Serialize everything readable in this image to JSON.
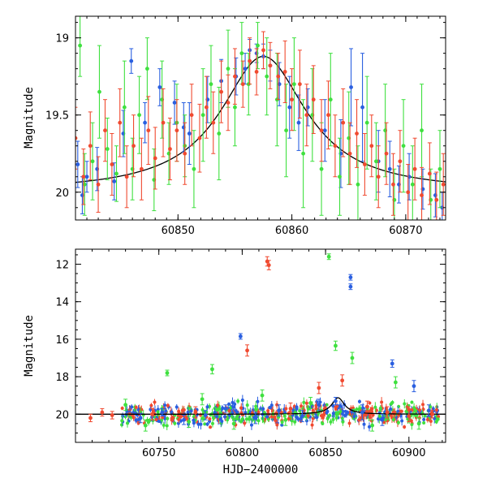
{
  "chart_data": [
    {
      "type": "scatter",
      "ylabel": "Magnitude",
      "xlabel": "",
      "xlim": [
        60841,
        60873.5
      ],
      "ylim": [
        20.18,
        18.86
      ],
      "y_inverted": true,
      "xticks": [
        60850,
        60860,
        60870
      ],
      "yticks": [
        19,
        19.5,
        20
      ],
      "ytick_labels": [
        "19",
        "19.5",
        "20"
      ],
      "grid": false,
      "legend": "none",
      "series": [
        {
          "color": "#2a5fe0",
          "points": [
            [
              60841.2,
              19.82,
              0.15
            ],
            [
              60841.6,
              20.02,
              0.12
            ],
            [
              60842.0,
              19.9,
              0.1
            ],
            [
              60842.9,
              19.85,
              0.14
            ],
            [
              60844.4,
              19.93,
              0.12
            ],
            [
              60845.2,
              19.62,
              0.15
            ],
            [
              60845.9,
              19.15,
              0.08
            ],
            [
              60847.1,
              19.55,
              0.13
            ],
            [
              60848.4,
              19.32,
              0.12
            ],
            [
              60849.7,
              19.42,
              0.14
            ],
            [
              60850.5,
              19.58,
              0.16
            ],
            [
              60851.0,
              19.62,
              0.2
            ],
            [
              60852.6,
              19.4,
              0.15
            ],
            [
              60853.8,
              19.28,
              0.14
            ],
            [
              60855.1,
              19.25,
              0.12
            ],
            [
              60855.9,
              19.2,
              0.1
            ],
            [
              60856.3,
              19.08,
              0.07
            ],
            [
              60856.9,
              19.1,
              0.06
            ],
            [
              60857.5,
              19.12,
              0.08
            ],
            [
              60858.1,
              19.18,
              0.1
            ],
            [
              60858.9,
              19.3,
              0.14
            ],
            [
              60859.8,
              19.45,
              0.2
            ],
            [
              60860.6,
              19.55,
              0.18
            ],
            [
              60861.4,
              19.45,
              0.12
            ],
            [
              60862.9,
              19.6,
              0.2
            ],
            [
              60864.3,
              19.75,
              0.22
            ],
            [
              60865.2,
              19.32,
              0.25
            ],
            [
              60866.2,
              19.45,
              0.35
            ],
            [
              60867.6,
              19.8,
              0.2
            ],
            [
              60868.6,
              19.85,
              0.18
            ],
            [
              60869.4,
              19.95,
              0.12
            ],
            [
              60870.3,
              19.9,
              0.15
            ],
            [
              60871.5,
              19.98,
              0.13
            ],
            [
              60872.6,
              20.02,
              0.14
            ],
            [
              60873.2,
              20.1,
              0.1
            ]
          ]
        },
        {
          "color": "#3fe03f",
          "points": [
            [
              60841.4,
              19.05,
              0.2
            ],
            [
              60841.8,
              19.95,
              0.2
            ],
            [
              60842.5,
              19.8,
              0.25
            ],
            [
              60843.1,
              19.35,
              0.3
            ],
            [
              60843.8,
              19.72,
              0.2
            ],
            [
              60844.6,
              19.88,
              0.18
            ],
            [
              60845.3,
              19.45,
              0.3
            ],
            [
              60846.0,
              19.85,
              0.2
            ],
            [
              60846.6,
              19.5,
              0.25
            ],
            [
              60847.3,
              19.2,
              0.2
            ],
            [
              60847.9,
              19.92,
              0.2
            ],
            [
              60848.6,
              19.4,
              0.25
            ],
            [
              60849.2,
              19.75,
              0.2
            ],
            [
              60849.9,
              19.55,
              0.25
            ],
            [
              60850.6,
              19.7,
              0.2
            ],
            [
              60851.4,
              19.85,
              0.25
            ],
            [
              60852.2,
              19.5,
              0.3
            ],
            [
              60852.9,
              19.3,
              0.25
            ],
            [
              60853.6,
              19.62,
              0.3
            ],
            [
              60854.4,
              19.2,
              0.25
            ],
            [
              60855.0,
              19.45,
              0.25
            ],
            [
              60855.6,
              19.1,
              0.2
            ],
            [
              60856.2,
              19.3,
              0.2
            ],
            [
              60857.0,
              19.05,
              0.15
            ],
            [
              60857.8,
              19.25,
              0.25
            ],
            [
              60858.7,
              19.4,
              0.3
            ],
            [
              60859.5,
              19.6,
              0.3
            ],
            [
              60860.2,
              19.3,
              0.3
            ],
            [
              60861.0,
              19.75,
              0.35
            ],
            [
              60861.8,
              19.5,
              0.3
            ],
            [
              60862.6,
              19.85,
              0.3
            ],
            [
              60863.4,
              19.4,
              0.3
            ],
            [
              60864.2,
              19.9,
              0.25
            ],
            [
              60865.0,
              19.65,
              0.3
            ],
            [
              60865.8,
              19.95,
              0.25
            ],
            [
              60866.6,
              19.55,
              0.3
            ],
            [
              60867.4,
              19.8,
              0.25
            ],
            [
              60868.2,
              19.6,
              0.3
            ],
            [
              60869.0,
              20.05,
              0.2
            ],
            [
              60869.8,
              19.7,
              0.3
            ],
            [
              60870.6,
              19.95,
              0.25
            ],
            [
              60871.4,
              19.6,
              0.3
            ],
            [
              60872.2,
              20.05,
              0.2
            ],
            [
              60873.0,
              19.85,
              0.25
            ]
          ]
        },
        {
          "color": "#f04a30",
          "points": [
            [
              60841.0,
              19.65,
              0.2
            ],
            [
              60841.7,
              19.9,
              0.18
            ],
            [
              60842.3,
              19.7,
              0.22
            ],
            [
              60843.0,
              19.95,
              0.18
            ],
            [
              60843.6,
              19.6,
              0.2
            ],
            [
              60844.2,
              19.82,
              0.2
            ],
            [
              60844.9,
              19.55,
              0.22
            ],
            [
              60845.5,
              19.9,
              0.2
            ],
            [
              60846.1,
              19.7,
              0.2
            ],
            [
              60846.8,
              19.85,
              0.2
            ],
            [
              60847.4,
              19.6,
              0.22
            ],
            [
              60848.0,
              19.78,
              0.2
            ],
            [
              60848.7,
              19.55,
              0.22
            ],
            [
              60849.3,
              19.72,
              0.2
            ],
            [
              60849.9,
              19.6,
              0.2
            ],
            [
              60850.6,
              19.75,
              0.2
            ],
            [
              60851.2,
              19.5,
              0.2
            ],
            [
              60851.9,
              19.65,
              0.22
            ],
            [
              60852.5,
              19.45,
              0.2
            ],
            [
              60853.1,
              19.55,
              0.2
            ],
            [
              60853.8,
              19.35,
              0.2
            ],
            [
              60854.4,
              19.42,
              0.18
            ],
            [
              60855.0,
              19.25,
              0.18
            ],
            [
              60855.7,
              19.3,
              0.15
            ],
            [
              60856.3,
              19.15,
              0.15
            ],
            [
              60856.9,
              19.22,
              0.15
            ],
            [
              60857.5,
              19.08,
              0.12
            ],
            [
              60858.1,
              19.18,
              0.15
            ],
            [
              60858.8,
              19.25,
              0.15
            ],
            [
              60859.4,
              19.22,
              0.2
            ],
            [
              60860.0,
              19.4,
              0.2
            ],
            [
              60860.7,
              19.3,
              0.22
            ],
            [
              60861.3,
              19.5,
              0.2
            ],
            [
              60861.9,
              19.4,
              0.22
            ],
            [
              60862.6,
              19.6,
              0.2
            ],
            [
              60863.2,
              19.5,
              0.22
            ],
            [
              60863.8,
              19.7,
              0.2
            ],
            [
              60864.5,
              19.55,
              0.22
            ],
            [
              60865.1,
              19.75,
              0.2
            ],
            [
              60865.7,
              19.62,
              0.22
            ],
            [
              60866.4,
              19.82,
              0.2
            ],
            [
              60867.0,
              19.7,
              0.2
            ],
            [
              60867.6,
              19.9,
              0.2
            ],
            [
              60868.3,
              19.75,
              0.2
            ],
            [
              60868.9,
              19.95,
              0.2
            ],
            [
              60869.5,
              19.8,
              0.2
            ],
            [
              60870.2,
              20.0,
              0.18
            ],
            [
              60870.8,
              19.85,
              0.2
            ],
            [
              60871.4,
              20.02,
              0.18
            ],
            [
              60872.1,
              19.88,
              0.2
            ],
            [
              60872.7,
              20.05,
              0.18
            ],
            [
              60873.3,
              19.95,
              0.2
            ]
          ]
        }
      ],
      "model_curve": {
        "color": "#000000",
        "t0": 60857.5,
        "baseline": 20.0,
        "peak": 19.12,
        "width": 4.6
      }
    },
    {
      "type": "scatter",
      "ylabel": "Magnitude",
      "xlabel": "HJD−2400000",
      "xlim": [
        60700,
        60922
      ],
      "ylim": [
        21.5,
        11.2
      ],
      "y_inverted": true,
      "xticks": [
        60750,
        60800,
        60850,
        60900
      ],
      "yticks": [
        12,
        14,
        16,
        18,
        20
      ],
      "ytick_labels": [
        "12",
        "14",
        "16",
        "18",
        "20"
      ],
      "grid": false,
      "legend": "none",
      "series": [
        {
          "color": "#2a5fe0",
          "points": [
            [
              60739,
              20.2,
              0.25
            ],
            [
              60752,
              19.9,
              0.2
            ],
            [
              60765,
              20.3,
              0.25
            ],
            [
              60778,
              20.05,
              0.25
            ],
            [
              60790,
              19.7,
              0.2
            ],
            [
              60799,
              15.85,
              0.15
            ],
            [
              60808,
              20.2,
              0.3
            ],
            [
              60822,
              19.8,
              0.3
            ],
            [
              60836,
              20.1,
              0.3
            ],
            [
              60846,
              19.5,
              0.3
            ],
            [
              60856,
              19.3,
              0.2
            ],
            [
              60865,
              12.7,
              0.15
            ],
            [
              60865,
              13.2,
              0.15
            ],
            [
              60872,
              19.9,
              0.4
            ],
            [
              60884,
              20.3,
              0.3
            ],
            [
              60890,
              17.3,
              0.2
            ],
            [
              60903,
              18.5,
              0.3
            ],
            [
              60912,
              19.8,
              0.3
            ]
          ]
        },
        {
          "color": "#3fe03f",
          "points": [
            [
              60730,
              19.5,
              0.3
            ],
            [
              60742,
              20.6,
              0.3
            ],
            [
              60755,
              17.8,
              0.15
            ],
            [
              60768,
              20.4,
              0.3
            ],
            [
              60776,
              19.2,
              0.3
            ],
            [
              60782,
              17.6,
              0.25
            ],
            [
              60795,
              20.5,
              0.3
            ],
            [
              60812,
              19.0,
              0.3
            ],
            [
              60826,
              20.3,
              0.3
            ],
            [
              60841,
              19.4,
              0.3
            ],
            [
              60852,
              11.6,
              0.15
            ],
            [
              60856,
              16.35,
              0.25
            ],
            [
              60866,
              17.0,
              0.3
            ],
            [
              60878,
              20.6,
              0.3
            ],
            [
              60892,
              18.3,
              0.3
            ],
            [
              60906,
              20.5,
              0.3
            ]
          ]
        },
        {
          "color": "#f04a30",
          "points": [
            [
              60709,
              20.2,
              0.2
            ],
            [
              60716,
              19.9,
              0.2
            ],
            [
              60722,
              20.05,
              0.2
            ],
            [
              60746,
              20.0,
              0.3
            ],
            [
              60772,
              19.9,
              0.3
            ],
            [
              60803,
              16.6,
              0.3
            ],
            [
              60815,
              11.85,
              0.25
            ],
            [
              60816,
              12.05,
              0.25
            ],
            [
              60829,
              19.7,
              0.3
            ],
            [
              60846,
              18.6,
              0.3
            ],
            [
              60860,
              18.2,
              0.3
            ],
            [
              60875,
              19.6,
              0.3
            ],
            [
              60887,
              19.9,
              0.3
            ],
            [
              60900,
              20.1,
              0.3
            ],
            [
              60914,
              20.0,
              0.2
            ]
          ]
        }
      ],
      "dense_band": {
        "x_range": [
          60727,
          60918
        ],
        "level": 20.0,
        "spread": 0.55
      },
      "model_curve": {
        "color": "#000000",
        "t0": 60857.5,
        "baseline": 20.0,
        "peak": 19.12,
        "width": 4.6
      }
    }
  ]
}
